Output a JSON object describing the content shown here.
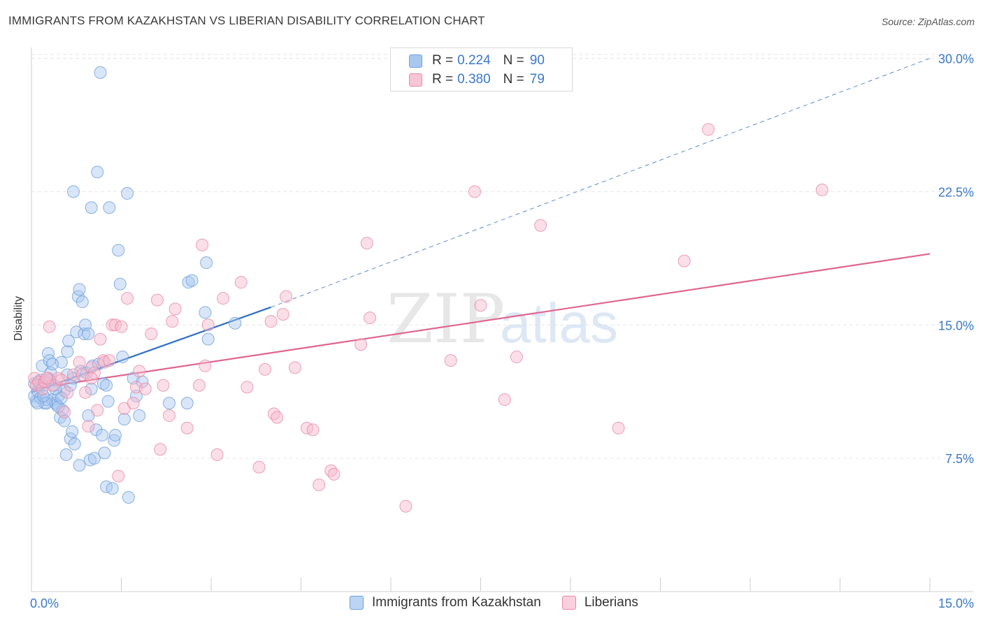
{
  "header": {
    "title": "IMMIGRANTS FROM KAZAKHSTAN VS LIBERIAN DISABILITY CORRELATION CHART",
    "source": "Source: ZipAtlas.com"
  },
  "legend_top": {
    "rows": [
      {
        "r_label": "R =",
        "r_value": "0.224",
        "n_label": "N =",
        "n_value": "90"
      },
      {
        "r_label": "R =",
        "r_value": "0.380",
        "n_label": "N =",
        "n_value": "79"
      }
    ]
  },
  "legend_bottom": {
    "items": [
      {
        "label": "Immigrants from Kazakhstan"
      },
      {
        "label": "Liberians"
      }
    ]
  },
  "colors": {
    "blue_fill": "#a9c8f0",
    "blue_stroke": "#6f9fdc",
    "blue_line": "#2f6fc8",
    "pink_fill": "#f6b8cb",
    "pink_stroke": "#e88aa8",
    "pink_line": "#e0648f",
    "tick_label": "#3a78c8",
    "grid": "#e6e6e6"
  },
  "chart_data": {
    "type": "scatter",
    "title": "IMMIGRANTS FROM KAZAKHSTAN VS LIBERIAN DISABILITY CORRELATION CHART",
    "xlabel": "",
    "ylabel": "Disability",
    "xlim": [
      0,
      15
    ],
    "ylim": [
      0,
      31
    ],
    "x_tick_labels": [
      "0.0%",
      "15.0%"
    ],
    "y_tick_values": [
      7.5,
      15.0,
      22.5,
      30.0
    ],
    "y_tick_labels": [
      "7.5%",
      "15.0%",
      "22.5%",
      "30.0%"
    ],
    "grid": true,
    "legend_placement": "top-center",
    "watermark": "ZIPatlas",
    "series": [
      {
        "name": "Immigrants from Kazakhstan",
        "R": 0.224,
        "N": 90,
        "trend": {
          "x": [
            0.0,
            4.0
          ],
          "y": [
            11.2,
            16.0
          ],
          "dashed_extension_to": [
            15.0,
            30.0
          ]
        },
        "points": [
          [
            0.05,
            11.0
          ],
          [
            0.08,
            10.7
          ],
          [
            0.1,
            11.3
          ],
          [
            0.12,
            11.8
          ],
          [
            0.15,
            10.9
          ],
          [
            0.18,
            12.7
          ],
          [
            0.2,
            11.6
          ],
          [
            0.22,
            10.6
          ],
          [
            0.25,
            10.8
          ],
          [
            0.28,
            13.4
          ],
          [
            0.3,
            13.0
          ],
          [
            0.32,
            12.3
          ],
          [
            0.35,
            10.8
          ],
          [
            0.38,
            11.6
          ],
          [
            0.4,
            10.6
          ],
          [
            0.42,
            10.5
          ],
          [
            0.45,
            11.0
          ],
          [
            0.48,
            9.8
          ],
          [
            0.5,
            12.9
          ],
          [
            0.52,
            10.2
          ],
          [
            0.55,
            9.6
          ],
          [
            0.58,
            7.7
          ],
          [
            0.6,
            13.5
          ],
          [
            0.62,
            14.1
          ],
          [
            0.65,
            8.6
          ],
          [
            0.68,
            9.0
          ],
          [
            0.7,
            12.0
          ],
          [
            0.72,
            8.3
          ],
          [
            0.75,
            14.6
          ],
          [
            0.78,
            16.6
          ],
          [
            0.8,
            17.0
          ],
          [
            0.82,
            12.4
          ],
          [
            0.85,
            16.3
          ],
          [
            0.88,
            14.5
          ],
          [
            0.9,
            15.0
          ],
          [
            0.92,
            12.3
          ],
          [
            0.95,
            9.9
          ],
          [
            0.98,
            7.4
          ],
          [
            1.0,
            11.4
          ],
          [
            1.02,
            12.7
          ],
          [
            1.05,
            7.5
          ],
          [
            1.08,
            9.1
          ],
          [
            1.1,
            23.6
          ],
          [
            1.12,
            12.8
          ],
          [
            1.15,
            29.2
          ],
          [
            1.18,
            8.8
          ],
          [
            1.2,
            11.7
          ],
          [
            1.22,
            7.8
          ],
          [
            1.25,
            5.9
          ],
          [
            1.28,
            10.7
          ],
          [
            1.3,
            21.6
          ],
          [
            1.35,
            5.8
          ],
          [
            1.38,
            8.5
          ],
          [
            1.4,
            8.8
          ],
          [
            1.45,
            19.2
          ],
          [
            1.48,
            17.3
          ],
          [
            1.52,
            13.2
          ],
          [
            1.55,
            9.7
          ],
          [
            1.6,
            22.4
          ],
          [
            1.62,
            5.3
          ],
          [
            1.7,
            12.0
          ],
          [
            1.75,
            11.0
          ],
          [
            1.8,
            9.9
          ],
          [
            1.85,
            11.8
          ],
          [
            2.3,
            10.6
          ],
          [
            2.6,
            10.6
          ],
          [
            2.62,
            17.4
          ],
          [
            2.68,
            17.5
          ],
          [
            2.9,
            15.7
          ],
          [
            2.92,
            18.5
          ],
          [
            2.95,
            14.2
          ],
          [
            3.4,
            15.1
          ],
          [
            0.7,
            22.5
          ],
          [
            1.0,
            21.6
          ],
          [
            0.95,
            14.5
          ],
          [
            0.15,
            11.9
          ],
          [
            0.25,
            10.6
          ],
          [
            0.35,
            12.8
          ],
          [
            0.45,
            10.4
          ],
          [
            0.55,
            11.3
          ],
          [
            0.3,
            11.9
          ],
          [
            0.6,
            12.2
          ],
          [
            0.1,
            10.6
          ],
          [
            0.2,
            11.0
          ],
          [
            0.4,
            11.4
          ],
          [
            0.5,
            10.9
          ],
          [
            0.8,
            7.1
          ],
          [
            1.25,
            11.6
          ],
          [
            0.65,
            11.6
          ],
          [
            0.05,
            11.7
          ]
        ]
      },
      {
        "name": "Liberians",
        "R": 0.38,
        "N": 79,
        "trend": {
          "x": [
            0.0,
            15.0
          ],
          "y": [
            11.4,
            19.0
          ]
        },
        "points": [
          [
            0.05,
            12.0
          ],
          [
            0.08,
            11.6
          ],
          [
            0.12,
            11.8
          ],
          [
            0.18,
            11.4
          ],
          [
            0.22,
            11.8
          ],
          [
            0.28,
            12.0
          ],
          [
            0.3,
            14.9
          ],
          [
            0.35,
            11.6
          ],
          [
            0.45,
            12.0
          ],
          [
            0.55,
            10.1
          ],
          [
            0.6,
            11.2
          ],
          [
            0.7,
            12.2
          ],
          [
            0.8,
            12.9
          ],
          [
            0.85,
            12.2
          ],
          [
            0.9,
            11.2
          ],
          [
            0.95,
            9.3
          ],
          [
            1.0,
            12.6
          ],
          [
            1.05,
            12.3
          ],
          [
            1.1,
            10.2
          ],
          [
            1.15,
            14.2
          ],
          [
            1.2,
            13.0
          ],
          [
            1.22,
            12.9
          ],
          [
            1.3,
            13.0
          ],
          [
            1.35,
            15.0
          ],
          [
            1.4,
            15.0
          ],
          [
            1.45,
            6.5
          ],
          [
            1.5,
            14.9
          ],
          [
            1.55,
            10.3
          ],
          [
            1.6,
            16.5
          ],
          [
            1.7,
            10.6
          ],
          [
            1.75,
            11.5
          ],
          [
            1.8,
            12.4
          ],
          [
            1.9,
            11.4
          ],
          [
            2.0,
            14.5
          ],
          [
            2.1,
            16.4
          ],
          [
            2.15,
            8.0
          ],
          [
            2.2,
            11.6
          ],
          [
            2.3,
            9.9
          ],
          [
            2.35,
            15.2
          ],
          [
            2.4,
            15.9
          ],
          [
            2.6,
            9.2
          ],
          [
            2.8,
            11.6
          ],
          [
            2.85,
            19.5
          ],
          [
            2.9,
            12.7
          ],
          [
            2.95,
            15.0
          ],
          [
            3.1,
            7.7
          ],
          [
            3.2,
            16.5
          ],
          [
            3.5,
            17.4
          ],
          [
            3.6,
            11.5
          ],
          [
            3.8,
            7.0
          ],
          [
            3.9,
            12.5
          ],
          [
            4.0,
            15.2
          ],
          [
            4.05,
            10.0
          ],
          [
            4.1,
            9.8
          ],
          [
            4.2,
            15.6
          ],
          [
            4.25,
            16.6
          ],
          [
            4.4,
            12.6
          ],
          [
            4.6,
            9.2
          ],
          [
            4.7,
            9.1
          ],
          [
            4.8,
            6.0
          ],
          [
            5.0,
            6.8
          ],
          [
            5.05,
            6.6
          ],
          [
            5.5,
            13.9
          ],
          [
            5.6,
            19.6
          ],
          [
            5.65,
            15.4
          ],
          [
            6.25,
            4.8
          ],
          [
            7.0,
            13.0
          ],
          [
            7.4,
            22.5
          ],
          [
            7.5,
            16.1
          ],
          [
            7.9,
            10.8
          ],
          [
            8.1,
            13.2
          ],
          [
            8.5,
            20.6
          ],
          [
            9.8,
            9.2
          ],
          [
            10.9,
            18.6
          ],
          [
            11.3,
            26.0
          ],
          [
            13.2,
            22.6
          ],
          [
            0.5,
            11.9
          ],
          [
            0.25,
            12.0
          ],
          [
            1.0,
            12.0
          ]
        ]
      }
    ]
  }
}
